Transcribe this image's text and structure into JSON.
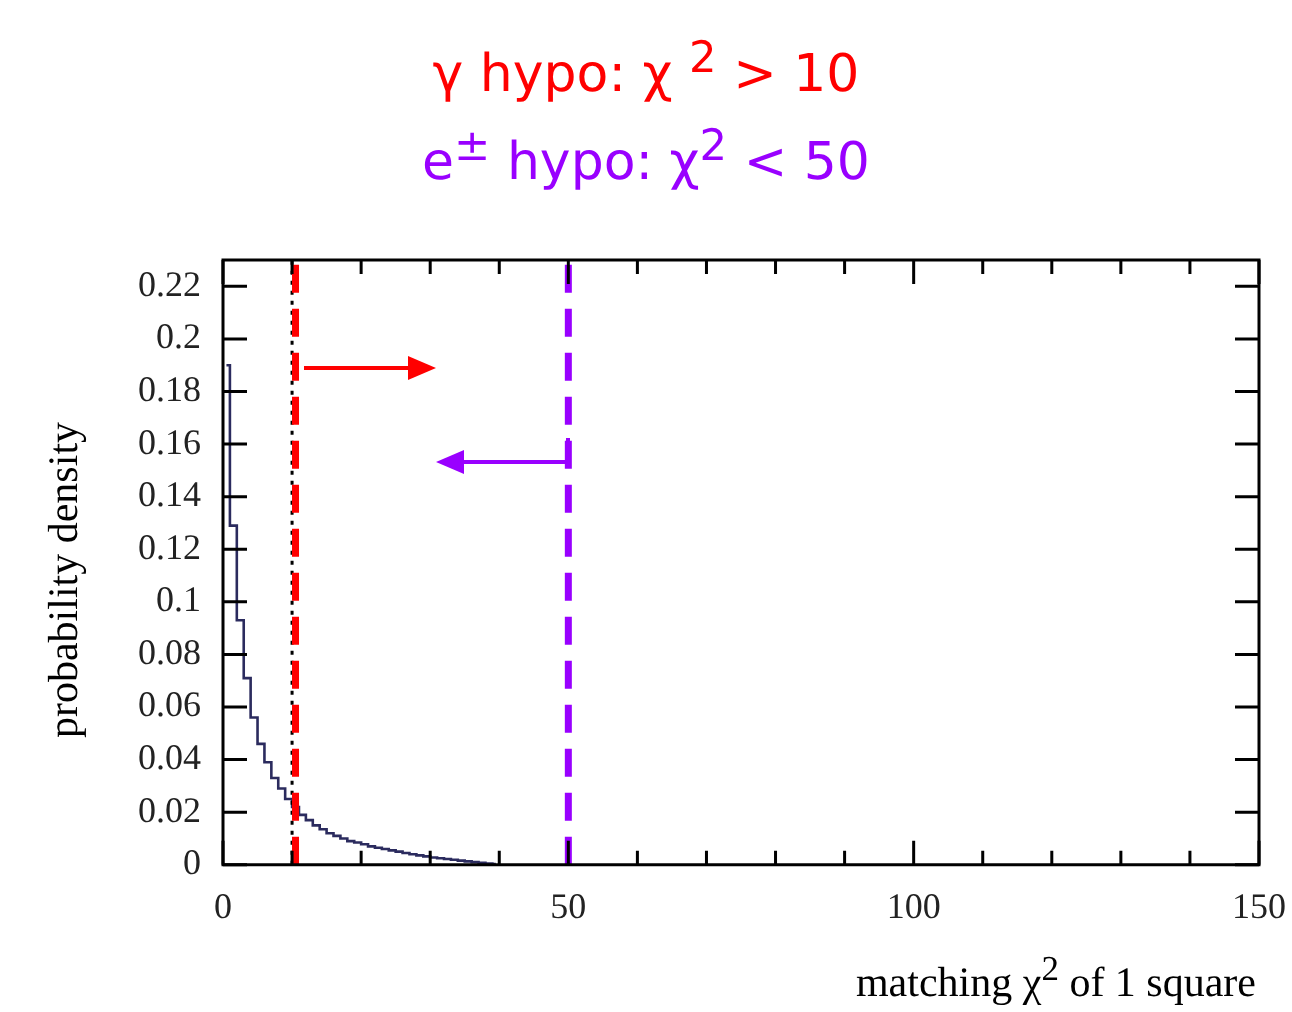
{
  "chart_data": {
    "type": "histogram",
    "title": "γ hypo: χ $^{2}$ > 10",
    "subtitle": "e$^{±}$ hypo: χ$^{2}$ < 50",
    "xlabel": "matching χ$^{2}$ of 1 square",
    "ylabel": "probability density",
    "bins": [
      0,
      1,
      2,
      3,
      4,
      5,
      6,
      7,
      8,
      9,
      10,
      11,
      12,
      13,
      14,
      15,
      16,
      17,
      18,
      19,
      20,
      21,
      22,
      23,
      24,
      25,
      26,
      27,
      28,
      29,
      30,
      31,
      32,
      33,
      34,
      35,
      36,
      37,
      38,
      39,
      40
    ],
    "values": [
      0.19,
      0.129,
      0.093,
      0.071,
      0.056,
      0.046,
      0.039,
      0.033,
      0.029,
      0.025,
      0.022,
      0.019,
      0.017,
      0.015,
      0.0135,
      0.012,
      0.011,
      0.01,
      0.009,
      0.0085,
      0.0078,
      0.007,
      0.0065,
      0.006,
      0.0055,
      0.005,
      0.0045,
      0.004,
      0.0036,
      0.0032,
      0.0028,
      0.0025,
      0.0022,
      0.0019,
      0.0016,
      0.0013,
      0.001,
      0.0008,
      0.0005,
      0.0003
    ],
    "color": "#2b2b5e",
    "xlim": [
      0,
      150
    ],
    "xticks": [
      0,
      {
        "value": 10,
        "label": null
      },
      {
        "value": 20,
        "label": null
      },
      {
        "value": 30,
        "label": null
      },
      {
        "value": 40,
        "label": null
      },
      50,
      {
        "value": 60,
        "label": null
      },
      {
        "value": 70,
        "label": null
      },
      {
        "value": 80,
        "label": null
      },
      {
        "value": 90,
        "label": null
      },
      100,
      {
        "value": 110,
        "label": null
      },
      {
        "value": 120,
        "label": null
      },
      {
        "value": 130,
        "label": null
      },
      {
        "value": 140,
        "label": null
      },
      150
    ],
    "ylim": [
      0,
      0.23
    ],
    "yticks": [
      0,
      0.02,
      0.04,
      0.06,
      0.08,
      0.1,
      0.12,
      0.14,
      0.16,
      0.18,
      0.2,
      0.22
    ],
    "ref_lines": [
      {
        "axis": "x",
        "value": 10,
        "color": "#000000",
        "line_style": "dotted"
      },
      {
        "axis": "x",
        "value": 10.5,
        "color": "#ff0000",
        "line_style": "dashed"
      },
      {
        "axis": "x",
        "value": 50,
        "color": "#9900ff",
        "line_style": "dashed"
      }
    ]
  }
}
